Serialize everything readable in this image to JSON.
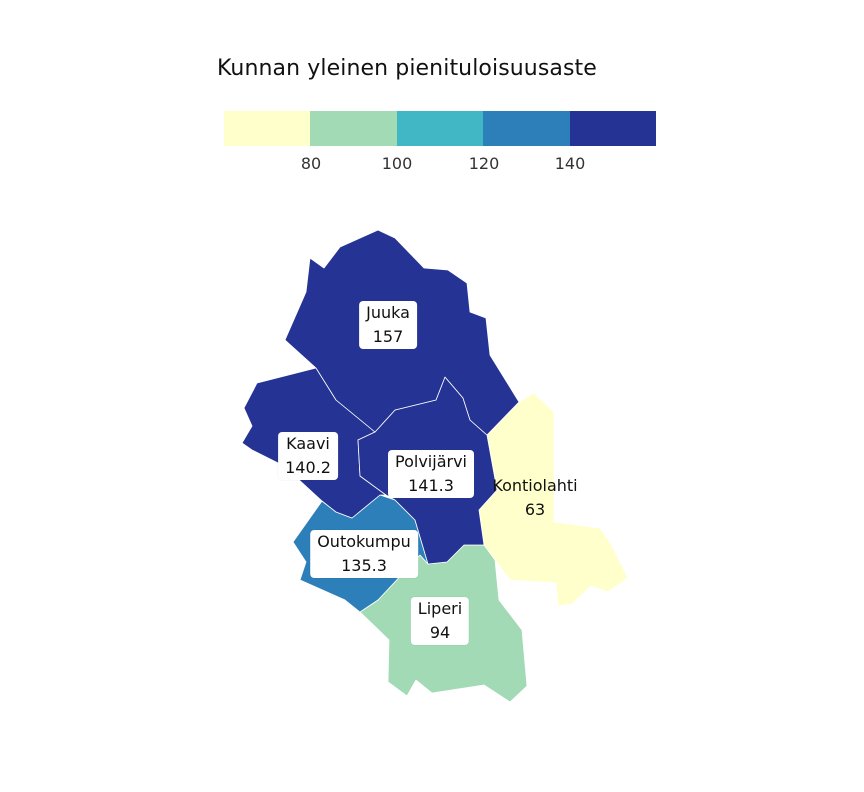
{
  "legend": {
    "title": "Kunnan yleinen pienituloisuusaste",
    "colors": [
      "#ffffcc",
      "#a1dab4",
      "#41b6c4",
      "#2c7fb8",
      "#253494"
    ],
    "ticks": [
      "80",
      "100",
      "120",
      "140"
    ]
  },
  "municipalities": {
    "juuka": {
      "name": "Juuka",
      "value": "157",
      "color": "#253494"
    },
    "kaavi": {
      "name": "Kaavi",
      "value": "140.2",
      "color": "#253494"
    },
    "polvijarvi": {
      "name": "Polvijärvi",
      "value": "141.3",
      "color": "#253494"
    },
    "kontiolahti": {
      "name": "Kontiolahti",
      "value": "63",
      "color": "#ffffcc"
    },
    "outokumpu": {
      "name": "Outokumpu",
      "value": "135.3",
      "color": "#2c7fb8"
    },
    "liperi": {
      "name": "Liperi",
      "value": "94",
      "color": "#a1dab4"
    }
  }
}
